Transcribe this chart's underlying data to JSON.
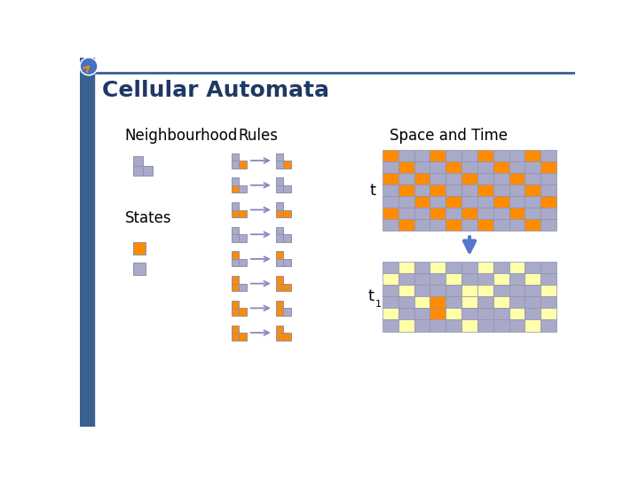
{
  "title": "Cellular Automata",
  "title_color": "#1F3864",
  "bg_color": "#FFFFFF",
  "orange": "#FF8C00",
  "lavender": "#A9A9C8",
  "yellow": "#FFFFAA",
  "arrow_color": "#8888BB",
  "blue_bar": "#3A5FA0",
  "blue_arrow": "#5577CC",
  "neighbourhood_label": "Neighbourhood",
  "rules_label": "Rules",
  "space_time_label": "Space and Time",
  "states_label": "States",
  "grid_t_data": [
    [
      1,
      0,
      0,
      1,
      0,
      0,
      1,
      0,
      0,
      1,
      0
    ],
    [
      0,
      1,
      0,
      0,
      1,
      0,
      0,
      1,
      0,
      0,
      1
    ],
    [
      1,
      0,
      1,
      0,
      0,
      1,
      0,
      0,
      1,
      0,
      0
    ],
    [
      0,
      1,
      0,
      1,
      0,
      0,
      1,
      0,
      0,
      1,
      0
    ],
    [
      0,
      0,
      1,
      0,
      1,
      0,
      0,
      1,
      0,
      0,
      1
    ],
    [
      1,
      0,
      0,
      1,
      0,
      1,
      0,
      0,
      1,
      0,
      0
    ],
    [
      0,
      1,
      0,
      0,
      1,
      0,
      1,
      0,
      0,
      1,
      0
    ]
  ],
  "grid_t1_data": [
    [
      0,
      2,
      0,
      2,
      0,
      0,
      2,
      0,
      2,
      0,
      0
    ],
    [
      2,
      0,
      0,
      0,
      2,
      0,
      0,
      2,
      0,
      2,
      0
    ],
    [
      0,
      2,
      0,
      0,
      0,
      2,
      2,
      0,
      0,
      0,
      2
    ],
    [
      0,
      0,
      2,
      1,
      0,
      2,
      0,
      2,
      0,
      0,
      0
    ],
    [
      2,
      0,
      0,
      1,
      2,
      0,
      0,
      0,
      2,
      0,
      2
    ],
    [
      0,
      2,
      0,
      0,
      0,
      2,
      0,
      0,
      0,
      2,
      0
    ]
  ]
}
